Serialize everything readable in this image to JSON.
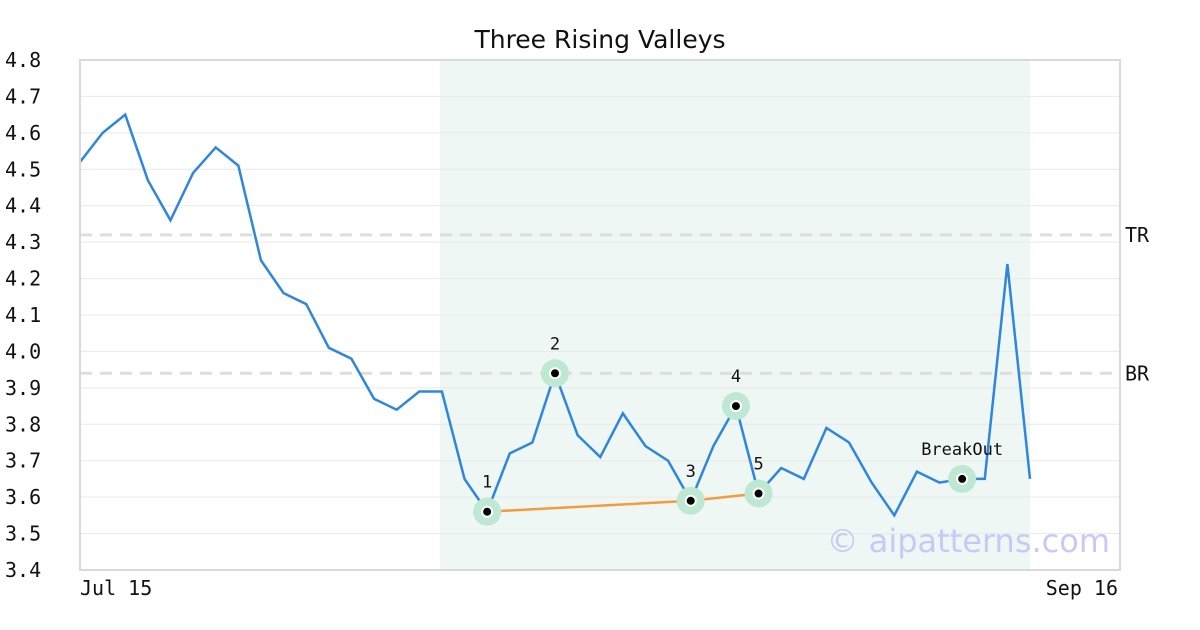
{
  "chart_data": {
    "type": "line",
    "title": "Three Rising Valleys",
    "xlabel": "",
    "ylabel": "",
    "ylim": [
      3.4,
      4.8
    ],
    "yticks": [
      "3.4",
      "3.5",
      "3.6",
      "3.7",
      "3.8",
      "3.9",
      "4.0",
      "4.1",
      "4.2",
      "4.3",
      "4.4",
      "4.5",
      "4.6",
      "4.7",
      "4.8"
    ],
    "xtick_labels": {
      "start": "Jul 15",
      "end": "Sep 16"
    },
    "grid": true,
    "series": [
      {
        "color": "#2e86de",
        "values": [
          4.52,
          4.6,
          4.65,
          4.47,
          4.36,
          4.49,
          4.56,
          4.51,
          4.25,
          4.16,
          4.13,
          4.01,
          3.98,
          3.87,
          3.84,
          3.89,
          3.89,
          3.65,
          3.56,
          3.72,
          3.75,
          3.94,
          3.77,
          3.71,
          3.83,
          3.74,
          3.7,
          3.59,
          3.74,
          3.85,
          3.61,
          3.68,
          3.65,
          3.79,
          3.75,
          3.64,
          3.55,
          3.67,
          3.64,
          3.65,
          3.65,
          4.24,
          3.65
        ]
      }
    ],
    "highlight_region": {
      "from_index": 16,
      "to_index": 42,
      "color": "#eef7f3"
    },
    "levels": [
      {
        "label": "TR",
        "value": 4.32
      },
      {
        "label": "BR",
        "value": 3.94
      }
    ],
    "pattern_points": [
      {
        "label": "1",
        "index": 18,
        "value": 3.56
      },
      {
        "label": "2",
        "index": 21,
        "value": 3.94
      },
      {
        "label": "3",
        "index": 27,
        "value": 3.59
      },
      {
        "label": "4",
        "index": 29,
        "value": 3.85
      },
      {
        "label": "5",
        "index": 30,
        "value": 3.61
      },
      {
        "label": "BreakOut",
        "index": 39,
        "value": 3.65
      }
    ],
    "trendline": {
      "color": "#f39c3d",
      "points": [
        "1",
        "3",
        "5"
      ]
    },
    "watermark": "© aipatterns.com",
    "colors": {
      "line": "#2e86de",
      "marker_halo": "#bfe8d3",
      "trendline": "#f39c3d"
    }
  }
}
